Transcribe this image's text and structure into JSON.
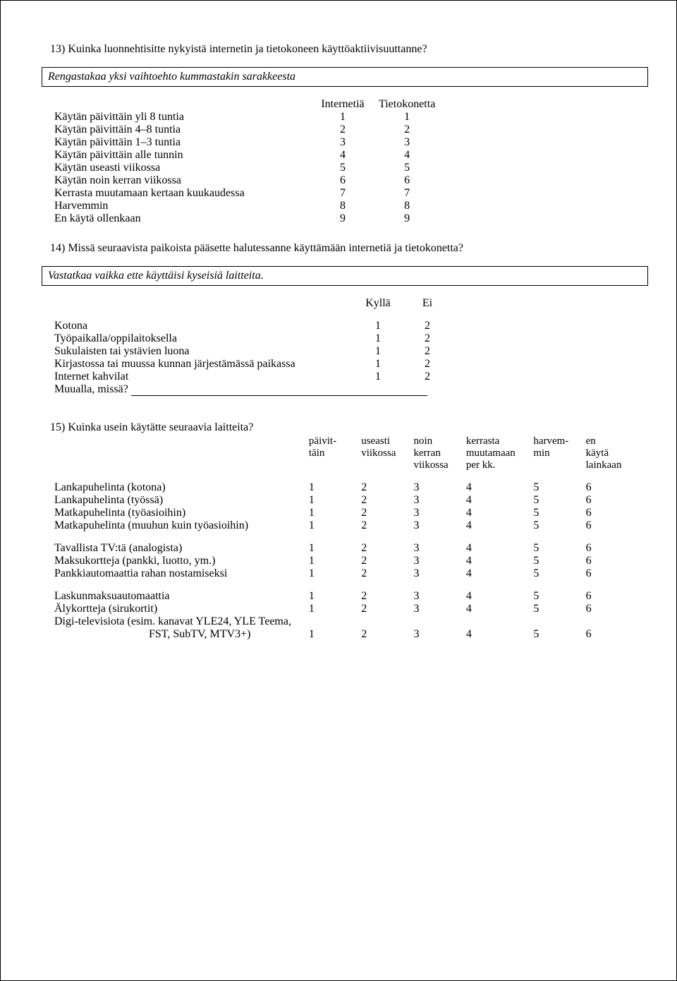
{
  "q13": {
    "title": "13) Kuinka luonnehtisitte nykyistä internetin ja tietokoneen käyttöaktiivisuuttanne?",
    "instruction": "Rengastakaa yksi vaihtoehto kummastakin sarakkeesta",
    "headers": {
      "col1": "Internetiä",
      "col2": "Tietokonetta"
    },
    "rows": [
      {
        "label": "Käytän päivittäin yli 8 tuntia",
        "v1": "1",
        "v2": "1"
      },
      {
        "label": "Käytän päivittäin 4–8 tuntia",
        "v1": "2",
        "v2": "2"
      },
      {
        "label": "Käytän päivittäin 1–3 tuntia",
        "v1": "3",
        "v2": "3"
      },
      {
        "label": "Käytän päivittäin alle tunnin",
        "v1": "4",
        "v2": "4"
      },
      {
        "label": "Käytän useasti viikossa",
        "v1": "5",
        "v2": "5"
      },
      {
        "label": "Käytän noin kerran viikossa",
        "v1": "6",
        "v2": "6"
      },
      {
        "label": "Kerrasta muutamaan kertaan kuukaudessa",
        "v1": "7",
        "v2": "7"
      },
      {
        "label": "Harvemmin",
        "v1": "8",
        "v2": "8"
      },
      {
        "label": "En käytä ollenkaan",
        "v1": "9",
        "v2": "9"
      }
    ]
  },
  "q14": {
    "title": "14) Missä seuraavista paikoista pääsette halutessanne käyttämään internetiä ja tietokonetta?",
    "instruction": "Vastatkaa vaikka ette käyttäisi kyseisiä laitteita.",
    "headers": {
      "col1": "Kyllä",
      "col2": "Ei"
    },
    "rows": [
      {
        "label": "Kotona",
        "v1": "1",
        "v2": "2"
      },
      {
        "label": "Työpaikalla/oppilaitoksella",
        "v1": "1",
        "v2": "2"
      },
      {
        "label": "Sukulaisten tai ystävien luona",
        "v1": "1",
        "v2": "2"
      },
      {
        "label": "Kirjastossa tai muussa kunnan järjestämässä paikassa",
        "v1": "1",
        "v2": "2"
      },
      {
        "label": "Internet kahvilat",
        "v1": "1",
        "v2": "2"
      }
    ],
    "other_label": "Muualla, missä?"
  },
  "q15": {
    "title": "15) Kuinka usein käytätte seuraavia laitteita?",
    "headers": [
      [
        "päivit-",
        "täin"
      ],
      [
        "useasti",
        "viikossa"
      ],
      [
        "noin",
        "kerran",
        "viikossa"
      ],
      [
        "kerrasta",
        "muutamaan",
        "per kk."
      ],
      [
        "harvem-",
        "min"
      ],
      [
        "en",
        "käytä",
        "lainkaan"
      ]
    ],
    "groups": [
      [
        {
          "label": "Lankapuhelinta (kotona)",
          "vals": [
            "1",
            "2",
            "3",
            "4",
            "5",
            "6"
          ]
        },
        {
          "label": "Lankapuhelinta (työssä)",
          "vals": [
            "1",
            "2",
            "3",
            "4",
            "5",
            "6"
          ]
        },
        {
          "label": "Matkapuhelinta (työasioihin)",
          "vals": [
            "1",
            "2",
            "3",
            "4",
            "5",
            "6"
          ]
        },
        {
          "label": "Matkapuhelinta (muuhun kuin työasioihin)",
          "vals": [
            "1",
            "2",
            "3",
            "4",
            "5",
            "6"
          ]
        }
      ],
      [
        {
          "label": "Tavallista TV:tä (analogista)",
          "vals": [
            "1",
            "2",
            "3",
            "4",
            "5",
            "6"
          ]
        },
        {
          "label": "Maksukortteja (pankki, luotto, ym.)",
          "vals": [
            "1",
            "2",
            "3",
            "4",
            "5",
            "6"
          ]
        },
        {
          "label": "Pankkiautomaattia rahan nostamiseksi",
          "vals": [
            "1",
            "2",
            "3",
            "4",
            "5",
            "6"
          ]
        }
      ],
      [
        {
          "label": "Laskunmaksuautomaattia",
          "vals": [
            "1",
            "2",
            "3",
            "4",
            "5",
            "6"
          ]
        },
        {
          "label": "Älykortteja (sirukortit)",
          "vals": [
            "1",
            "2",
            "3",
            "4",
            "5",
            "6"
          ]
        }
      ]
    ],
    "digi_label_line1": "Digi-televisiota (esim. kanavat YLE24, YLE Teema,",
    "digi_label_line2": "FST, SubTV, MTV3+)",
    "digi_vals": [
      "1",
      "2",
      "3",
      "4",
      "5",
      "6"
    ]
  }
}
